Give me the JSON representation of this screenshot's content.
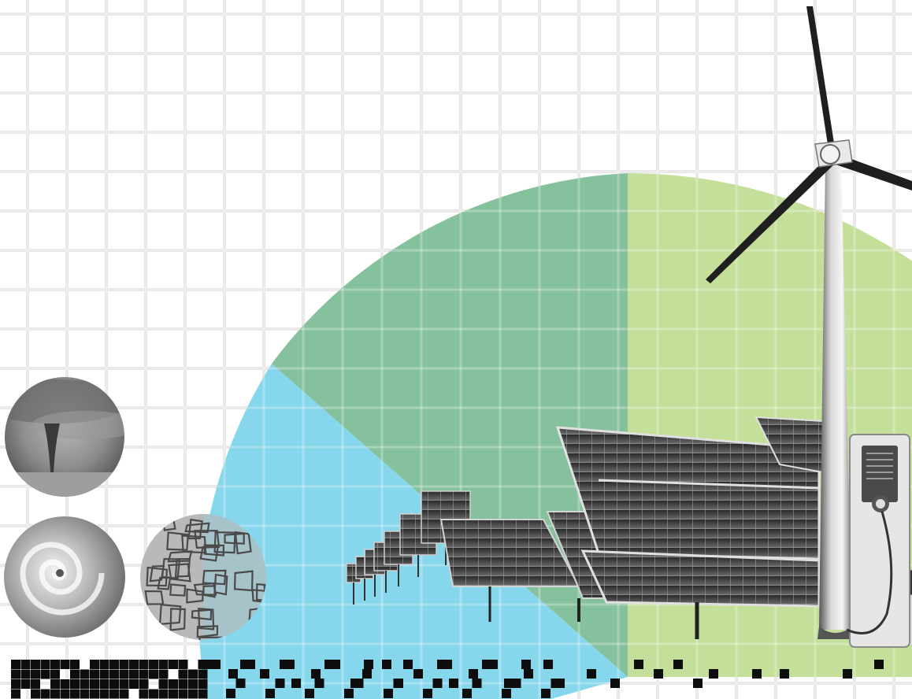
{
  "illustration": {
    "theme": "renewable-energy-collage",
    "colors": {
      "background": "#ffffff",
      "grid_line": "#e6e6e6",
      "pie_blue": "#86d6ec",
      "pie_dark_green": "#85c19d",
      "pie_light_green": "#c4df9a",
      "ink": "#111111"
    },
    "icons": [
      "tornado-photo-icon",
      "hurricane-photo-icon",
      "drought-cracked-earth-icon",
      "solar-panel-array-icon",
      "wind-turbine-icon",
      "ev-charger-icon",
      "pixel-dot-pattern-icon"
    ]
  }
}
